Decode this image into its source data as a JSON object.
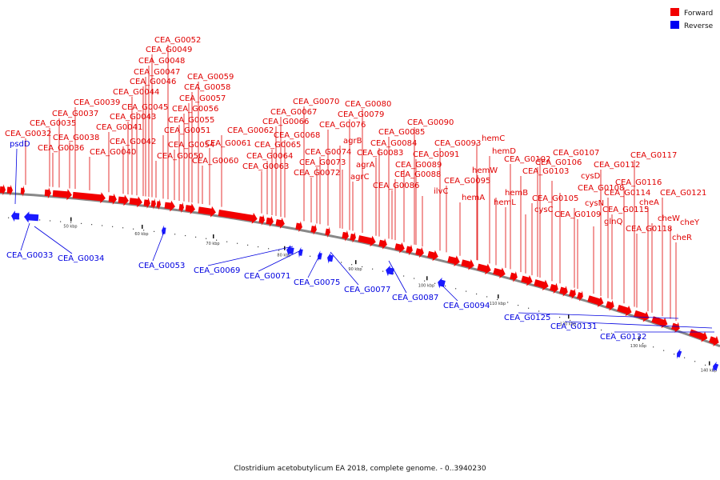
{
  "title": "Clostridium acetobutylicum EA 2018, complete genome. - 0..3940230",
  "legend": {
    "forward": {
      "label": "Forward",
      "color": "#f20000"
    },
    "reverse": {
      "label": "Reverse",
      "color": "#0000f2"
    }
  },
  "colors": {
    "backbone": "#888888",
    "forward": "#f20000",
    "reverse": "#1a1aff",
    "forward_label": "#e00000",
    "reverse_label": "#0000e0"
  },
  "ticks": [
    "50 kbp",
    "60 kbp",
    "70 kbp",
    "80 kbp",
    "90 kbp",
    "100 kbp",
    "110 kbp",
    "120 kbp",
    "130 kbp",
    "140 kbp"
  ],
  "forward_labels": [
    "CEA_G0032",
    "CEA_G0035",
    "CEA_G0036",
    "CEA_G0037",
    "CEA_G0038",
    "CEA_G0039",
    "CEA_G0040",
    "CEA_G0041",
    "CEA_G0042",
    "CEA_G0043",
    "CEA_G0044",
    "CEA_G0045",
    "CEA_G0046",
    "CEA_G0047",
    "CEA_G0048",
    "CEA_G0049",
    "CEA_G0050",
    "CEA_G0051",
    "CEA_G0052",
    "CEA_G0054",
    "CEA_G0055",
    "CEA_G0056",
    "CEA_G0057",
    "CEA_G0058",
    "CEA_G0059",
    "CEA_G0060",
    "CEA_G0061",
    "CEA_G0062",
    "CEA_G0063",
    "CEA_G0064",
    "CEA_G0065",
    "CEA_G0066",
    "CEA_G0067",
    "CEA_G0068",
    "CEA_G0070",
    "CEA_G0072",
    "CEA_G0073",
    "CEA_G0074",
    "CEA_G0076",
    "agrB",
    "agrA",
    "agrC",
    "CEA_G0079",
    "CEA_G0080",
    "CEA_G0083",
    "CEA_G0084",
    "CEA_G0085",
    "CEA_G0086",
    "CEA_G0088",
    "CEA_G0089",
    "CEA_G0090",
    "CEA_G0091",
    "ilvC",
    "CEA_G0093",
    "CEA_G0095",
    "hemA",
    "hemW",
    "hemC",
    "hemD",
    "hemB",
    "hemL",
    "CEA_G0102",
    "CEA_G0103",
    "cysC",
    "CEA_G0105",
    "CEA_G0106",
    "CEA_G0107",
    "cysD",
    "CEA_G0108",
    "cysN",
    "CEA_G0109",
    "glnQ",
    "CEA_G0112",
    "CEA_G0114",
    "CEA_G0115",
    "CEA_G0116",
    "CEA_G0117",
    "CEA_G0118",
    "cheA",
    "cheW",
    "CEA_G0121",
    "cheY",
    "cheR"
  ],
  "reverse_labels": [
    "psdD",
    "CEA_G0033",
    "CEA_G0034",
    "CEA_G0053",
    "CEA_G0069",
    "CEA_G0071",
    "CEA_G0075",
    "CEA_G0077",
    "CEA_G0087",
    "CEA_G0094",
    "CEA_G0125",
    "CEA_G0131",
    "CEA_G0132"
  ]
}
